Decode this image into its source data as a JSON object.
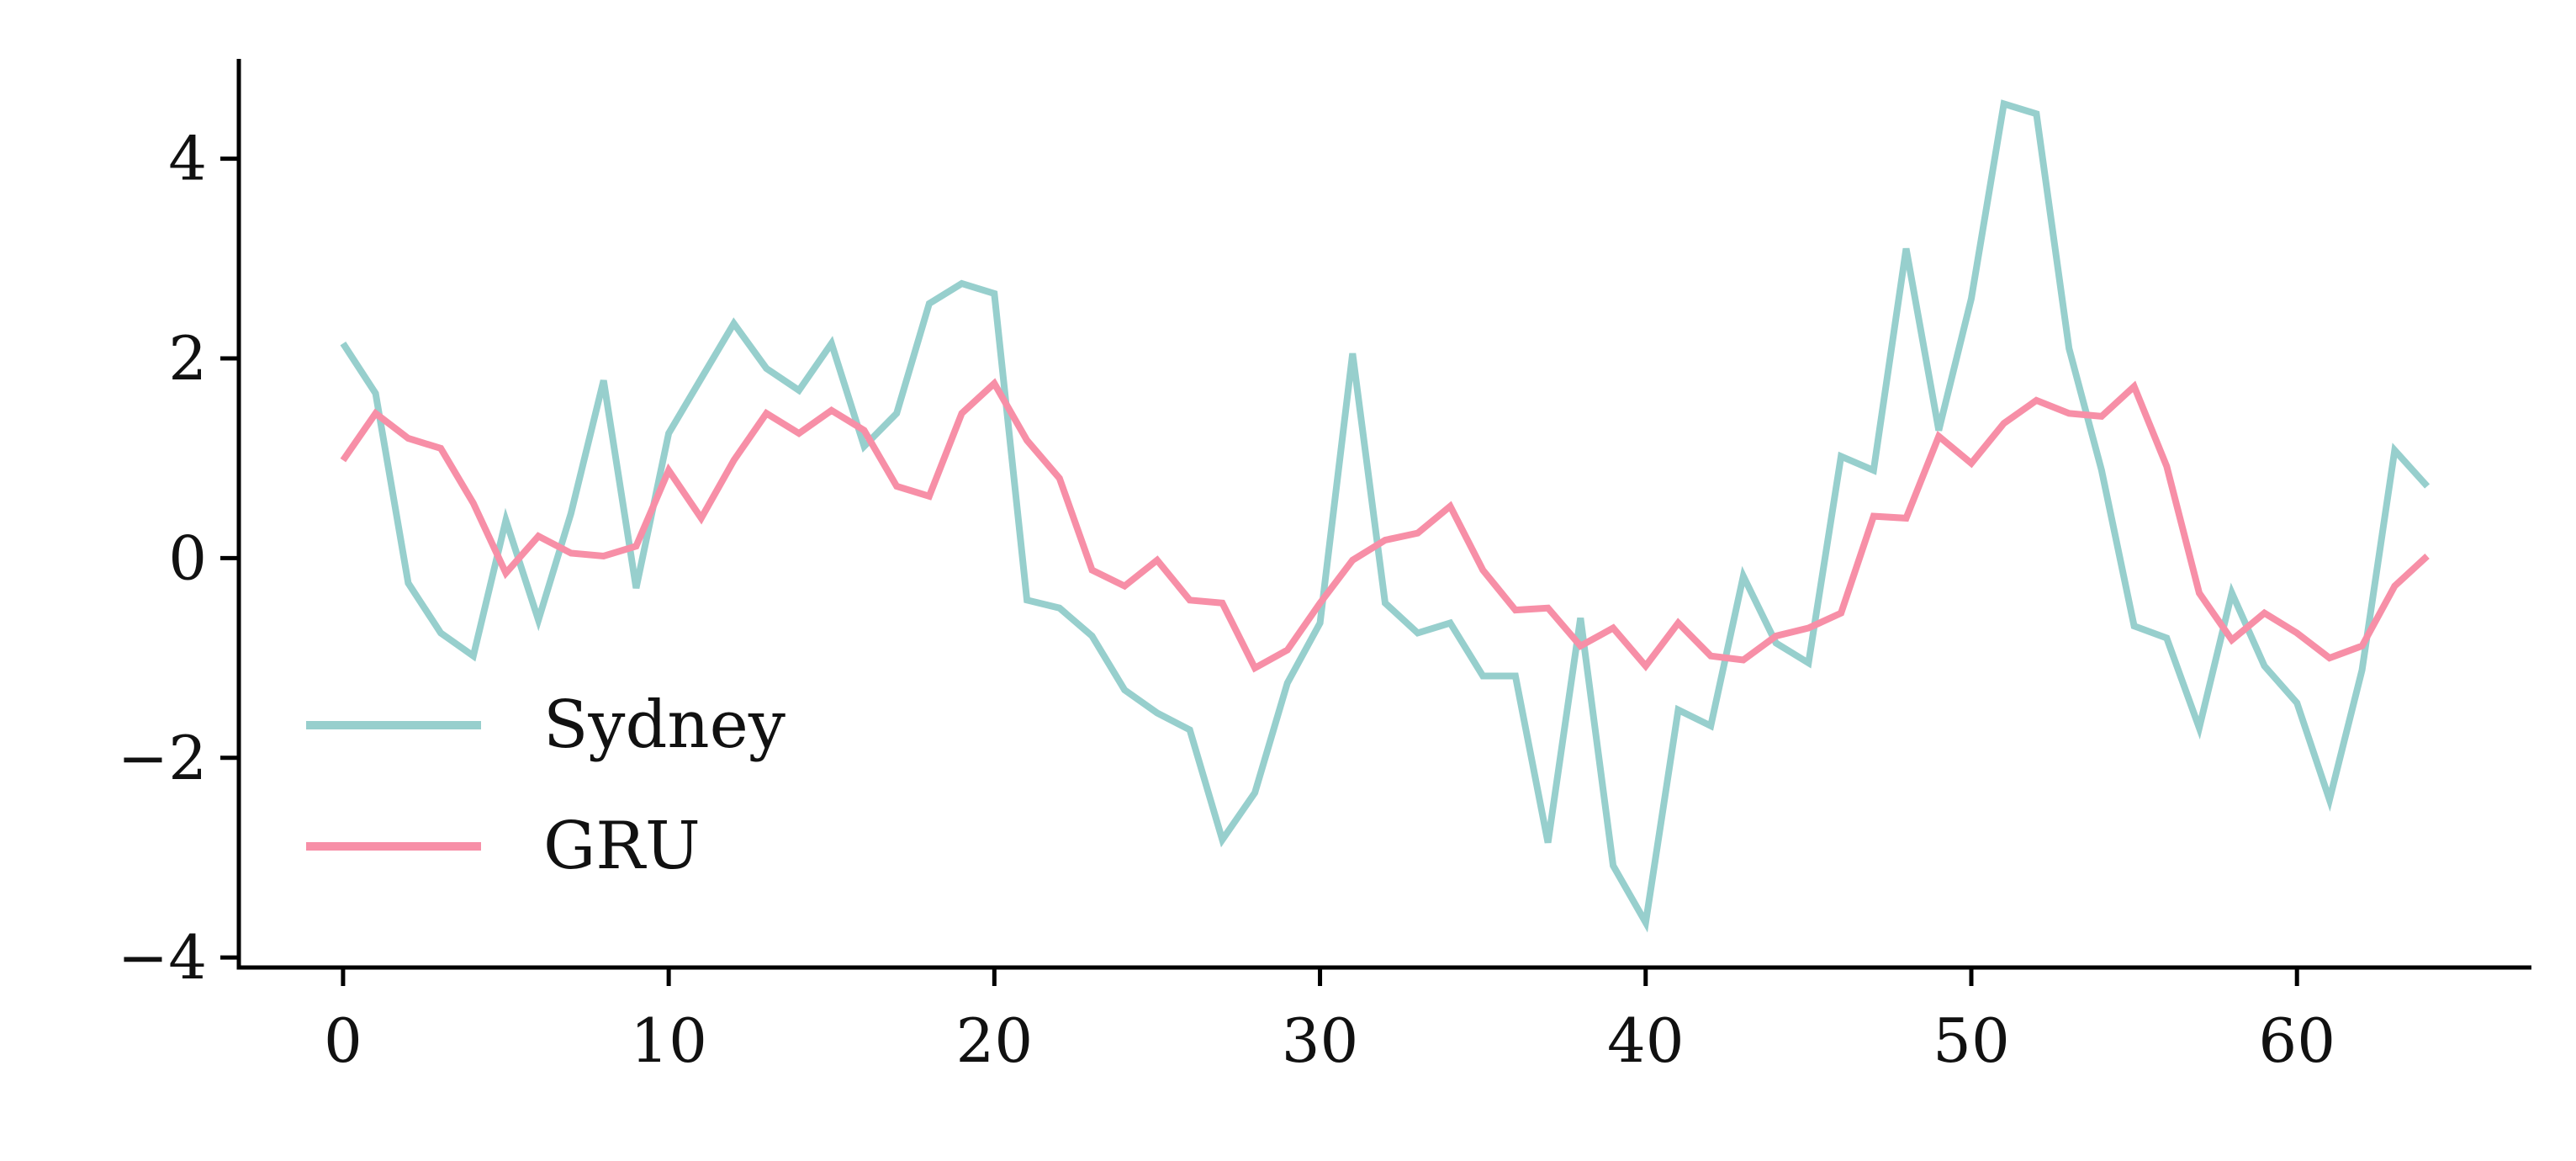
{
  "chart_data": {
    "type": "line",
    "title": "",
    "xlabel": "",
    "ylabel": "",
    "xlim": [
      -3.2,
      67.2
    ],
    "ylim": [
      -4.1,
      5.0
    ],
    "xticks": [
      0,
      10,
      20,
      30,
      40,
      50,
      60
    ],
    "yticks": [
      -4,
      -2,
      0,
      2,
      4
    ],
    "ytick_labels": [
      "−4",
      "−2",
      "0",
      "2",
      "4"
    ],
    "xtick_labels": [
      "0",
      "10",
      "20",
      "30",
      "40",
      "50",
      "60"
    ],
    "grid": false,
    "legend": {
      "position": "lower-left"
    },
    "series": [
      {
        "name": "Sydney",
        "color": "#97CFCD",
        "x": [
          0,
          1,
          2,
          3,
          4,
          5,
          6,
          7,
          8,
          9,
          10,
          11,
          12,
          13,
          14,
          15,
          16,
          17,
          18,
          19,
          20,
          21,
          22,
          23,
          24,
          25,
          26,
          27,
          28,
          29,
          30,
          31,
          32,
          33,
          34,
          35,
          36,
          37,
          38,
          39,
          40,
          41,
          42,
          43,
          44,
          45,
          46,
          47,
          48,
          49,
          50,
          51,
          52,
          53,
          54,
          55,
          56,
          57,
          58,
          59,
          60,
          61,
          62,
          63,
          64
        ],
        "values": [
          2.15,
          1.65,
          -0.25,
          -0.75,
          -0.98,
          0.38,
          -0.62,
          0.45,
          1.78,
          -0.3,
          1.25,
          1.8,
          2.35,
          1.9,
          1.68,
          2.15,
          1.12,
          1.45,
          2.55,
          2.75,
          2.65,
          -0.42,
          -0.5,
          -0.78,
          -1.32,
          -1.55,
          -1.72,
          -2.82,
          -2.35,
          -1.25,
          -0.65,
          2.05,
          -0.45,
          -0.75,
          -0.65,
          -1.18,
          -1.18,
          -2.85,
          -0.6,
          -3.08,
          -3.65,
          -1.52,
          -1.68,
          -0.18,
          -0.85,
          -1.05,
          1.02,
          0.88,
          3.1,
          1.28,
          2.6,
          4.55,
          4.45,
          2.1,
          0.88,
          -0.68,
          -0.8,
          -1.7,
          -0.35,
          -1.08,
          -1.45,
          -2.42,
          -1.12,
          1.08,
          0.72
        ]
      },
      {
        "name": "GRU",
        "color": "#F78FA7",
        "x": [
          0,
          1,
          2,
          3,
          4,
          5,
          6,
          7,
          8,
          9,
          10,
          11,
          12,
          13,
          14,
          15,
          16,
          17,
          18,
          19,
          20,
          21,
          22,
          23,
          24,
          25,
          26,
          27,
          28,
          29,
          30,
          31,
          32,
          33,
          34,
          35,
          36,
          37,
          38,
          39,
          40,
          41,
          42,
          43,
          44,
          45,
          46,
          47,
          48,
          49,
          50,
          51,
          52,
          53,
          54,
          55,
          56,
          57,
          58,
          59,
          60,
          61,
          62,
          63,
          64
        ],
        "values": [
          0.98,
          1.45,
          1.2,
          1.1,
          0.55,
          -0.15,
          0.22,
          0.05,
          0.02,
          0.12,
          0.88,
          0.4,
          0.98,
          1.45,
          1.25,
          1.48,
          1.28,
          0.72,
          0.62,
          1.45,
          1.75,
          1.18,
          0.8,
          -0.12,
          -0.28,
          -0.02,
          -0.42,
          -0.45,
          -1.1,
          -0.92,
          -0.45,
          -0.02,
          0.18,
          0.25,
          0.52,
          -0.12,
          -0.52,
          -0.5,
          -0.88,
          -0.7,
          -1.08,
          -0.65,
          -0.98,
          -1.02,
          -0.78,
          -0.7,
          -0.55,
          0.42,
          0.4,
          1.22,
          0.95,
          1.35,
          1.58,
          1.45,
          1.42,
          1.72,
          0.92,
          -0.35,
          -0.82,
          -0.55,
          -0.75,
          -1.0,
          -0.88,
          -0.28,
          0.02
        ]
      }
    ]
  }
}
